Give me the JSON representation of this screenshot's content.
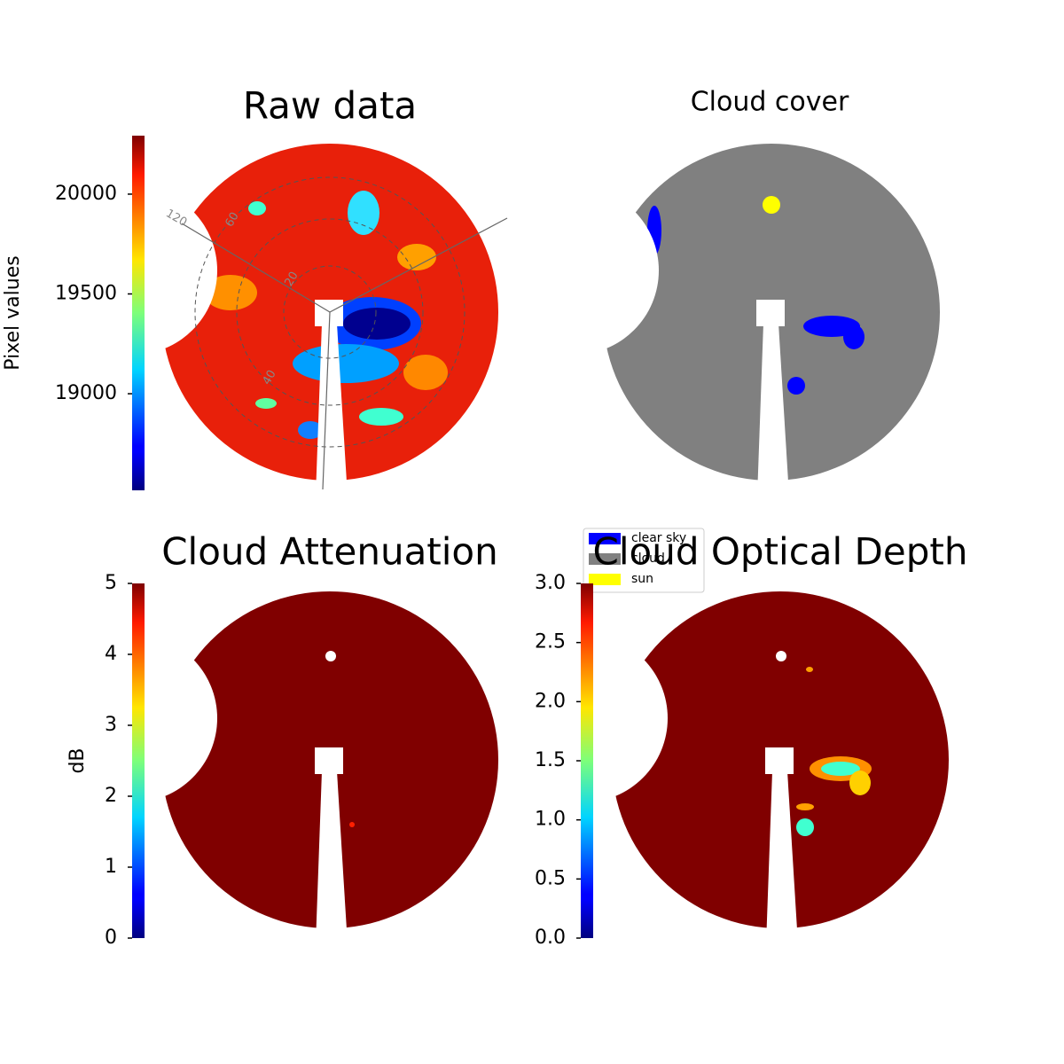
{
  "chart_data": [
    {
      "type": "image",
      "title": "Raw data",
      "annotations": [
        "120",
        "60",
        "20",
        "40"
      ],
      "colorbar": {
        "label": "Pixel values",
        "colormap": "jet",
        "ylim": [
          18516,
          20293
        ],
        "yticks": [
          19000,
          19500,
          20000
        ]
      }
    },
    {
      "type": "image",
      "title": "Cloud cover",
      "series": [
        {
          "name": "clear sky",
          "color": "#0000ff"
        },
        {
          "name": "cloud",
          "color": "#808080"
        },
        {
          "name": "sun",
          "color": "#ffff00"
        }
      ]
    },
    {
      "type": "image",
      "title": "Cloud Attenuation",
      "colorbar": {
        "label": "dB",
        "colormap": "jet",
        "ylim": [
          0,
          5
        ],
        "yticks": [
          0,
          1,
          2,
          3,
          4,
          5
        ]
      }
    },
    {
      "type": "image",
      "title": "Cloud Optical Depth",
      "colorbar": {
        "colormap": "jet",
        "ylim": [
          0,
          3
        ],
        "yticks": [
          {
            "value": 0,
            "label": "0.0"
          },
          0.5,
          {
            "value": 1,
            "label": "1.0"
          },
          1.5,
          {
            "value": 2,
            "label": "2.0"
          },
          2.5,
          {
            "value": 3,
            "label": "3.0"
          }
        ]
      }
    }
  ]
}
